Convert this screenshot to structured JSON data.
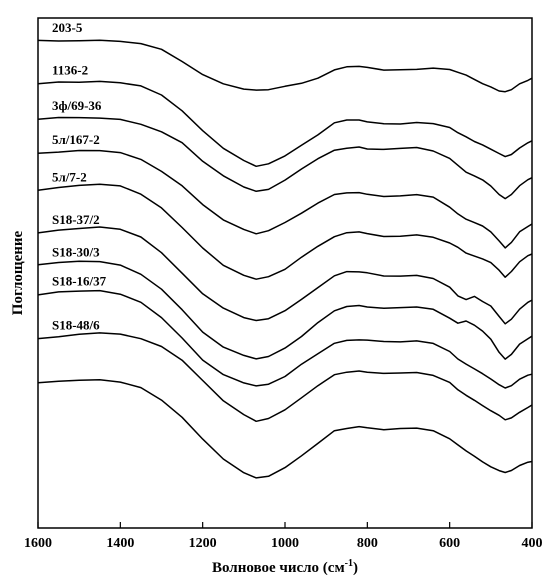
{
  "chart_data": {
    "type": "line",
    "title": "",
    "xlabel": "Волновое число (см",
    "xlabel_sup": "-1",
    "xlabel_close": ")",
    "ylabel": "Поглощение",
    "xlim": [
      1600,
      400
    ],
    "ylim": [
      0,
      10
    ],
    "x_ticks": [
      1600,
      1400,
      1200,
      1000,
      800,
      600,
      400
    ],
    "x": [
      1600,
      1550,
      1500,
      1450,
      1400,
      1350,
      1300,
      1250,
      1200,
      1150,
      1100,
      1070,
      1040,
      1000,
      960,
      920,
      880,
      850,
      820,
      800,
      760,
      720,
      680,
      640,
      600,
      580,
      560,
      540,
      520,
      500,
      480,
      465,
      450,
      430,
      410,
      400
    ],
    "series": [
      {
        "name": "203-5",
        "y": [
          9.55,
          9.55,
          9.56,
          9.57,
          9.55,
          9.5,
          9.38,
          9.15,
          8.9,
          8.7,
          8.6,
          8.58,
          8.6,
          8.65,
          8.73,
          8.82,
          8.98,
          9.04,
          9.06,
          9.04,
          8.99,
          8.98,
          9.0,
          9.01,
          8.98,
          8.94,
          8.88,
          8.8,
          8.72,
          8.64,
          8.57,
          8.56,
          8.6,
          8.7,
          8.78,
          8.82
        ]
      },
      {
        "name": "1136-2",
        "y": [
          8.72,
          8.74,
          8.75,
          8.76,
          8.74,
          8.66,
          8.48,
          8.18,
          7.8,
          7.45,
          7.2,
          7.1,
          7.15,
          7.3,
          7.5,
          7.72,
          7.94,
          8.0,
          8.0,
          7.96,
          7.92,
          7.93,
          7.95,
          7.93,
          7.85,
          7.76,
          7.66,
          7.58,
          7.5,
          7.42,
          7.35,
          7.28,
          7.32,
          7.45,
          7.55,
          7.6
        ]
      },
      {
        "name": "3ф/69-36",
        "y": [
          8.02,
          8.04,
          8.04,
          8.04,
          8.0,
          7.92,
          7.78,
          7.55,
          7.2,
          6.9,
          6.68,
          6.6,
          6.65,
          6.82,
          7.04,
          7.24,
          7.4,
          7.45,
          7.46,
          7.44,
          7.42,
          7.44,
          7.45,
          7.4,
          7.25,
          7.1,
          6.98,
          6.9,
          6.82,
          6.7,
          6.55,
          6.45,
          6.55,
          6.72,
          6.82,
          6.86
        ]
      },
      {
        "name": "5л/167-2",
        "y": [
          7.35,
          7.38,
          7.4,
          7.4,
          7.35,
          7.22,
          7.0,
          6.7,
          6.35,
          6.05,
          5.85,
          5.78,
          5.82,
          5.98,
          6.18,
          6.38,
          6.55,
          6.58,
          6.58,
          6.54,
          6.5,
          6.52,
          6.54,
          6.48,
          6.3,
          6.15,
          6.05,
          5.98,
          5.92,
          5.8,
          5.62,
          5.5,
          5.6,
          5.8,
          5.92,
          5.96
        ]
      },
      {
        "name": "5л/7-2",
        "y": [
          6.62,
          6.68,
          6.72,
          6.74,
          6.7,
          6.55,
          6.28,
          5.9,
          5.5,
          5.15,
          4.95,
          4.88,
          4.92,
          5.08,
          5.3,
          5.52,
          5.72,
          5.78,
          5.8,
          5.78,
          5.72,
          5.72,
          5.74,
          5.7,
          5.58,
          5.5,
          5.4,
          5.32,
          5.28,
          5.2,
          5.05,
          4.92,
          5.02,
          5.22,
          5.34,
          5.38
        ]
      },
      {
        "name": "S18-37/2",
        "y": [
          5.78,
          5.84,
          5.88,
          5.9,
          5.85,
          5.7,
          5.4,
          5.0,
          4.6,
          4.3,
          4.12,
          4.06,
          4.1,
          4.26,
          4.48,
          4.72,
          4.95,
          5.02,
          5.03,
          5.0,
          4.95,
          4.95,
          4.96,
          4.9,
          4.72,
          4.55,
          4.48,
          4.55,
          4.45,
          4.35,
          4.15,
          4.0,
          4.1,
          4.3,
          4.42,
          4.46
        ]
      },
      {
        "name": "S18-30/3",
        "y": [
          5.15,
          5.2,
          5.22,
          5.22,
          5.15,
          4.98,
          4.68,
          4.28,
          3.85,
          3.55,
          3.38,
          3.32,
          3.36,
          3.52,
          3.76,
          4.02,
          4.26,
          4.34,
          4.36,
          4.34,
          4.3,
          4.32,
          4.33,
          4.28,
          4.12,
          4.02,
          4.05,
          3.98,
          3.85,
          3.7,
          3.45,
          3.3,
          3.4,
          3.6,
          3.72,
          3.76
        ]
      },
      {
        "name": "S18-16/37",
        "y": [
          4.58,
          4.62,
          4.64,
          4.65,
          4.58,
          4.42,
          4.12,
          3.72,
          3.3,
          3.0,
          2.84,
          2.78,
          2.82,
          2.98,
          3.2,
          3.42,
          3.62,
          3.68,
          3.7,
          3.68,
          3.65,
          3.66,
          3.68,
          3.62,
          3.45,
          3.32,
          3.22,
          3.12,
          3.02,
          2.92,
          2.82,
          2.75,
          2.8,
          2.92,
          3.0,
          3.02
        ]
      },
      {
        "name": "S18-48/6",
        "y": [
          3.72,
          3.76,
          3.8,
          3.82,
          3.8,
          3.72,
          3.55,
          3.28,
          2.9,
          2.5,
          2.22,
          2.1,
          2.15,
          2.32,
          2.55,
          2.78,
          3.0,
          3.06,
          3.08,
          3.06,
          3.03,
          3.04,
          3.05,
          3.0,
          2.85,
          2.72,
          2.6,
          2.5,
          2.4,
          2.3,
          2.2,
          2.12,
          2.16,
          2.28,
          2.36,
          2.4
        ]
      },
      {
        "name": "",
        "y": [
          2.85,
          2.88,
          2.9,
          2.9,
          2.86,
          2.75,
          2.52,
          2.18,
          1.75,
          1.35,
          1.08,
          0.98,
          1.02,
          1.18,
          1.42,
          1.66,
          1.9,
          1.96,
          1.98,
          1.96,
          1.93,
          1.94,
          1.95,
          1.9,
          1.75,
          1.62,
          1.5,
          1.4,
          1.3,
          1.2,
          1.12,
          1.08,
          1.12,
          1.22,
          1.28,
          1.3
        ]
      }
    ],
    "grid": false,
    "legend": "none"
  }
}
